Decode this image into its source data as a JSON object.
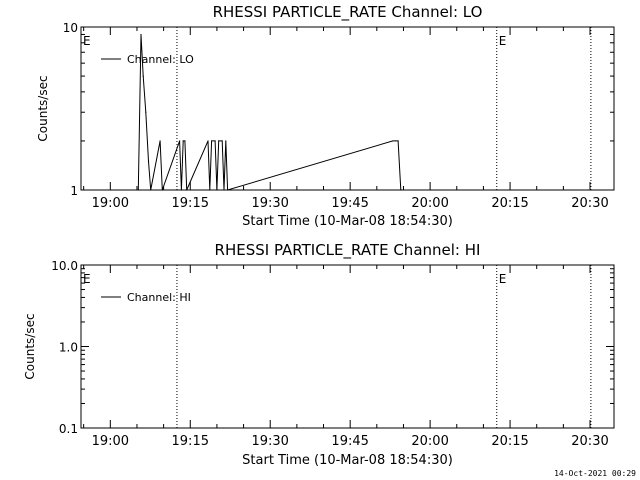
{
  "footer_timestamp": "14-Oct-2021 00:29",
  "chart_data": [
    {
      "type": "line",
      "title": "RHESSI PARTICLE_RATE Channel: LO",
      "xlabel": "Start Time (10-Mar-08 18:54:30)",
      "ylabel": "Counts/sec",
      "yscale": "log",
      "ylim": [
        1,
        10
      ],
      "yticks": [
        1,
        10
      ],
      "ytick_labels": [
        "1",
        "10"
      ],
      "xlim": [
        "18:54:30",
        "20:34:30"
      ],
      "xticks": [
        "19:00",
        "19:15",
        "19:30",
        "19:45",
        "20:00",
        "20:15",
        "20:30"
      ],
      "grid": false,
      "legend": {
        "placement": "top-left",
        "entries": [
          "Channel: LO"
        ]
      },
      "series": [
        {
          "name": "Channel: LO",
          "x": [
            "19:05:15",
            "19:05:45",
            "19:06:10",
            "19:06:40",
            "19:07:10",
            "19:07:35",
            "19:09:20",
            "19:09:45",
            "19:13:00",
            "19:13:20",
            "19:13:40",
            "19:14:00",
            "19:14:20",
            "19:18:20",
            "19:18:40",
            "19:19:00",
            "19:19:40",
            "19:20:00",
            "19:20:20",
            "19:21:00",
            "19:21:20",
            "19:21:40",
            "19:22:00",
            "19:53:00",
            "19:53:30",
            "19:54:00",
            "19:54:30"
          ],
          "y": [
            1,
            9,
            5,
            3,
            1.5,
            1,
            2,
            1,
            2,
            1,
            2,
            2,
            1,
            2,
            1,
            2,
            2,
            1,
            2,
            2,
            1,
            2,
            1,
            2,
            2,
            2,
            1
          ]
        }
      ],
      "markers": [
        {
          "time": "18:54:30",
          "label": "E"
        },
        {
          "time": "19:12:30",
          "label": ""
        },
        {
          "time": "20:12:30",
          "label": "E"
        },
        {
          "time": "20:30:10",
          "label": ""
        }
      ]
    },
    {
      "type": "line",
      "title": "RHESSI PARTICLE_RATE Channel: HI",
      "xlabel": "Start Time (10-Mar-08 18:54:30)",
      "ylabel": "Counts/sec",
      "yscale": "log",
      "ylim": [
        0.1,
        10
      ],
      "yticks": [
        0.1,
        1,
        10
      ],
      "ytick_labels": [
        "0.1",
        "1.0",
        "10.0"
      ],
      "xlim": [
        "18:54:30",
        "20:34:30"
      ],
      "xticks": [
        "19:00",
        "19:15",
        "19:30",
        "19:45",
        "20:00",
        "20:15",
        "20:30"
      ],
      "grid": false,
      "legend": {
        "placement": "top-left",
        "entries": [
          "Channel: HI"
        ]
      },
      "series": [
        {
          "name": "Channel: HI",
          "x": [],
          "y": []
        }
      ],
      "markers": [
        {
          "time": "18:54:30",
          "label": "E"
        },
        {
          "time": "19:12:30",
          "label": ""
        },
        {
          "time": "20:12:30",
          "label": "E"
        },
        {
          "time": "20:30:10",
          "label": ""
        }
      ]
    }
  ]
}
